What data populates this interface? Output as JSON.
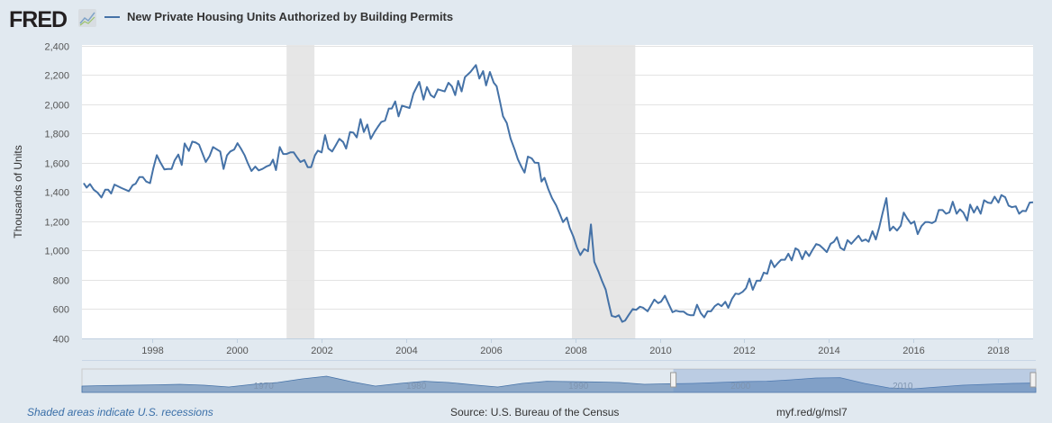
{
  "header": {
    "logo_text": "FRED",
    "series_title": "New Private Housing Units Authorized by Building Permits"
  },
  "colors": {
    "line": "#4572a7",
    "recession": "#e6e6e6",
    "background": "#e1e9f0",
    "plot": "#ffffff"
  },
  "chart_data": {
    "type": "line",
    "title": "",
    "xlabel": "",
    "ylabel": "Thousands of Units",
    "xlim": [
      1996.33,
      2018.83
    ],
    "ylim": [
      400,
      2400
    ],
    "yticks": [
      400,
      600,
      800,
      1000,
      1200,
      1400,
      1600,
      1800,
      2000,
      2200,
      2400
    ],
    "ytick_labels": [
      "400",
      "600",
      "800",
      "1,000",
      "1,200",
      "1,400",
      "1,600",
      "1,800",
      "2,000",
      "2,200",
      "2,400"
    ],
    "xticks": [
      1998,
      2000,
      2002,
      2004,
      2006,
      2008,
      2010,
      2012,
      2014,
      2016,
      2018
    ],
    "xtick_labels": [
      "1998",
      "2000",
      "2002",
      "2004",
      "2006",
      "2008",
      "2010",
      "2012",
      "2014",
      "2016",
      "2018"
    ],
    "grid": "horizontal",
    "legend": "top-left",
    "recessions": [
      [
        2001.17,
        2001.83
      ],
      [
        2007.92,
        2009.42
      ]
    ],
    "series": [
      {
        "name": "New Private Housing Units Authorized by Building Permits",
        "x": [
          1996.37,
          1996.44,
          1996.52,
          1996.61,
          1996.7,
          1996.79,
          1996.88,
          1996.95,
          1997.02,
          1997.1,
          1997.27,
          1997.44,
          1997.53,
          1997.6,
          1997.69,
          1997.77,
          1997.85,
          1997.94,
          1998.02,
          1998.1,
          1998.18,
          1998.28,
          1998.36,
          1998.45,
          1998.52,
          1998.61,
          1998.69,
          1998.76,
          1998.86,
          1998.94,
          1999.02,
          1999.1,
          1999.26,
          1999.35,
          1999.43,
          1999.6,
          1999.68,
          1999.76,
          1999.84,
          1999.93,
          2000.01,
          2000.09,
          2000.18,
          2000.25,
          2000.34,
          2000.43,
          2000.51,
          2000.6,
          2000.69,
          2000.78,
          2000.85,
          2000.92,
          2001.01,
          2001.09,
          2001.17,
          2001.26,
          2001.34,
          2001.42,
          2001.5,
          2001.59,
          2001.67,
          2001.75,
          2001.84,
          2001.91,
          2002.0,
          2002.08,
          2002.16,
          2002.25,
          2002.33,
          2002.42,
          2002.51,
          2002.58,
          2002.67,
          2002.75,
          2002.83,
          2002.92,
          2003.0,
          2003.08,
          2003.16,
          2003.25,
          2003.33,
          2003.41,
          2003.5,
          2003.59,
          2003.66,
          2003.74,
          2003.82,
          2003.9,
          2004.08,
          2004.17,
          2004.31,
          2004.41,
          2004.49,
          2004.58,
          2004.66,
          2004.75,
          2004.91,
          2005.0,
          2005.08,
          2005.16,
          2005.23,
          2005.31,
          2005.39,
          2005.52,
          2005.65,
          2005.73,
          2005.82,
          2005.89,
          2005.98,
          2006.07,
          2006.14,
          2006.22,
          2006.29,
          2006.38,
          2006.47,
          2006.57,
          2006.64,
          2006.73,
          2006.8,
          2006.88,
          2006.97,
          2007.04,
          2007.13,
          2007.2,
          2007.27,
          2007.36,
          2007.45,
          2007.55,
          2007.64,
          2007.71,
          2007.8,
          2007.87,
          2007.96,
          2008.04,
          2008.12,
          2008.21,
          2008.3,
          2008.37,
          2008.45,
          2008.55,
          2008.63,
          2008.72,
          2008.79,
          2008.86,
          2008.95,
          2009.03,
          2009.11,
          2009.18,
          2009.26,
          2009.36,
          2009.44,
          2009.53,
          2009.6,
          2009.71,
          2009.78,
          2009.87,
          2009.96,
          2010.03,
          2010.12,
          2010.2,
          2010.3,
          2010.38,
          2010.47,
          2010.56,
          2010.65,
          2010.73,
          2010.8,
          2010.88,
          2010.97,
          2011.05,
          2011.13,
          2011.21,
          2011.3,
          2011.38,
          2011.46,
          2011.55,
          2011.62,
          2011.71,
          2011.79,
          2011.87,
          2011.96,
          2012.04,
          2012.12,
          2012.2,
          2012.29,
          2012.38,
          2012.46,
          2012.54,
          2012.63,
          2012.71,
          2012.79,
          2012.87,
          2012.96,
          2013.04,
          2013.12,
          2013.21,
          2013.28,
          2013.37,
          2013.45,
          2013.53,
          2013.61,
          2013.7,
          2013.78,
          2013.86,
          2013.95,
          2014.04,
          2014.12,
          2014.19,
          2014.27,
          2014.36,
          2014.44,
          2014.53,
          2014.62,
          2014.7,
          2014.78,
          2014.87,
          2014.94,
          2015.03,
          2015.11,
          2015.19,
          2015.27,
          2015.36,
          2015.44,
          2015.52,
          2015.61,
          2015.7,
          2015.77,
          2015.85,
          2015.94,
          2016.02,
          2016.1,
          2016.19,
          2016.28,
          2016.36,
          2016.44,
          2016.52,
          2016.6,
          2016.69,
          2016.77,
          2016.85,
          2016.93,
          2017.02,
          2017.1,
          2017.18,
          2017.27,
          2017.34,
          2017.43,
          2017.51,
          2017.59,
          2017.67,
          2017.76,
          2017.84,
          2017.92,
          2018.01,
          2018.08,
          2018.17,
          2018.25,
          2018.33,
          2018.42,
          2018.5,
          2018.58,
          2018.66,
          2018.75,
          2018.83
        ],
        "y": [
          1460,
          1430,
          1454,
          1415,
          1395,
          1362,
          1415,
          1415,
          1389,
          1450,
          1426,
          1405,
          1446,
          1456,
          1501,
          1501,
          1471,
          1460,
          1563,
          1651,
          1604,
          1553,
          1557,
          1557,
          1614,
          1655,
          1584,
          1731,
          1680,
          1743,
          1737,
          1723,
          1604,
          1645,
          1706,
          1676,
          1557,
          1649,
          1676,
          1690,
          1733,
          1696,
          1649,
          1598,
          1543,
          1573,
          1547,
          1557,
          1573,
          1584,
          1620,
          1549,
          1706,
          1659,
          1659,
          1670,
          1670,
          1635,
          1604,
          1618,
          1569,
          1569,
          1649,
          1682,
          1670,
          1788,
          1696,
          1676,
          1717,
          1762,
          1741,
          1696,
          1809,
          1805,
          1772,
          1897,
          1809,
          1860,
          1762,
          1809,
          1844,
          1877,
          1887,
          1969,
          1969,
          2018,
          1916,
          1989,
          1973,
          2071,
          2151,
          2030,
          2116,
          2061,
          2045,
          2100,
          2086,
          2145,
          2121,
          2061,
          2158,
          2086,
          2184,
          2219,
          2266,
          2174,
          2225,
          2127,
          2219,
          2147,
          2121,
          2014,
          1916,
          1870,
          1764,
          1686,
          1624,
          1569,
          1532,
          1641,
          1629,
          1600,
          1598,
          1471,
          1497,
          1420,
          1358,
          1307,
          1245,
          1194,
          1225,
          1153,
          1092,
          1020,
          969,
          1010,
          995,
          1178,
          923,
          856,
          794,
          733,
          640,
          554,
          546,
          558,
          513,
          522,
          558,
          600,
          595,
          616,
          610,
          585,
          620,
          665,
          641,
          651,
          691,
          640,
          579,
          589,
          583,
          583,
          564,
          558,
          558,
          630,
          572,
          544,
          585,
          585,
          620,
          636,
          620,
          650,
          609,
          671,
          706,
          702,
          718,
          743,
          808,
          732,
          794,
          794,
          849,
          841,
          933,
          886,
          913,
          937,
          937,
          978,
          933,
          1015,
          1003,
          941,
          995,
          962,
          1003,
          1044,
          1036,
          1015,
          989,
          1046,
          1060,
          1091,
          1019,
          1003,
          1071,
          1046,
          1075,
          1101,
          1064,
          1075,
          1060,
          1132,
          1075,
          1159,
          1255,
          1358,
          1136,
          1163,
          1136,
          1169,
          1259,
          1220,
          1183,
          1198,
          1112,
          1167,
          1194,
          1194,
          1187,
          1200,
          1276,
          1276,
          1251,
          1261,
          1333,
          1251,
          1282,
          1259,
          1204,
          1313,
          1259,
          1300,
          1251,
          1343,
          1327,
          1323,
          1368,
          1327,
          1378,
          1364,
          1306,
          1296,
          1302,
          1251,
          1271,
          1269,
          1327,
          1329
        ]
      }
    ]
  },
  "navigator": {
    "labels": [
      "1970",
      "1980",
      "1990",
      "2000",
      "2010"
    ],
    "selected_range_fraction": [
      0.62,
      1.0
    ]
  },
  "footer": {
    "recession_note": "Shaded areas indicate U.S. recessions",
    "source": "Source: U.S. Bureau of the Census",
    "short_url": "myf.red/g/msl7"
  }
}
